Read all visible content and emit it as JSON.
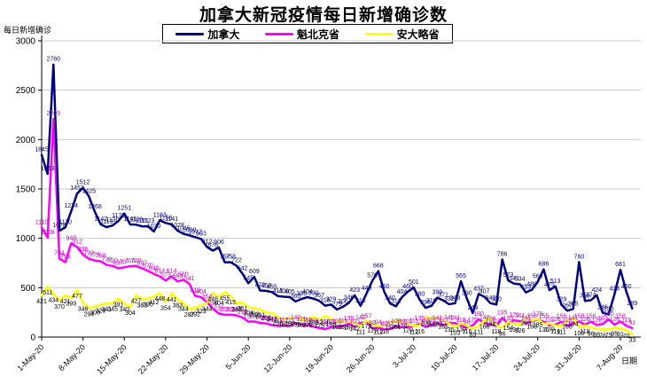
{
  "title": "加拿大新冠疫情每日新增确诊数",
  "legend": {
    "items": [
      {
        "label": "加拿大",
        "color": "#000080"
      },
      {
        "label": "魁北克省",
        "color": "#FF00FF"
      },
      {
        "label": "安大略省",
        "color": "#FFFF00"
      }
    ]
  },
  "y_axis": {
    "title": "每日新增确诊",
    "ticks": [
      "0",
      "500",
      "1000",
      "1500",
      "2000",
      "2500",
      "3000"
    ]
  },
  "x_axis": {
    "title": "日期",
    "ticks": [
      "1-May-20",
      "8-May-20",
      "15-May-20",
      "22-May-20",
      "29-May-20",
      "5-Jun-20",
      "12-Jun-20",
      "19-Jun-20",
      "26-Jun-20",
      "3-Jul-20",
      "10-Jul-20",
      "17-Jul-20",
      "24-Jul-20",
      "31-Jul-20",
      "7-Aug-20"
    ]
  },
  "chart_data": {
    "type": "line",
    "title": "加拿大新冠疫情每日新增确诊数",
    "xlabel": "日期",
    "ylabel": "每日新增确诊",
    "ylim": [
      0,
      3000
    ],
    "y_tick_step": 500,
    "grid": "horizontal-gray",
    "legend_position": "top-center",
    "x_tick_labels": [
      "1-May-20",
      "8-May-20",
      "15-May-20",
      "22-May-20",
      "29-May-20",
      "5-Jun-20",
      "12-Jun-20",
      "19-Jun-20",
      "26-Jun-20",
      "3-Jul-20",
      "10-Jul-20",
      "17-Jul-20",
      "24-Jul-20",
      "31-Jul-20",
      "7-Aug-20"
    ],
    "x_tick_interval_days": 7,
    "point_labels_visible": true,
    "notable_peaks": [
      {
        "series": "加拿大",
        "value": 2760
      },
      {
        "series": "魁北克省",
        "value": 2209
      },
      {
        "series": "加拿大",
        "value": 786
      },
      {
        "series": "加拿大",
        "value": 760
      },
      {
        "series": "加拿大",
        "value": 681
      }
    ],
    "series": [
      {
        "name": "加拿大",
        "color": "#000080",
        "label_color": "#000080",
        "label_dy": -4,
        "values": [
          1845,
          1653,
          2760,
          1078,
          1110,
          1274,
          1453,
          1512,
          1425,
          1268,
          1142,
          1113,
          1130,
          1176,
          1251,
          1141,
          1138,
          1121,
          1123,
          1070,
          1183,
          1156,
          1141,
          1078,
          1046,
          1030,
          1012,
          993,
          912,
          876,
          906,
          757,
          758,
          722,
          642,
          545,
          609,
          472,
          468,
          455,
          415,
          409,
          405,
          360,
          386,
          404,
          390,
          367,
          318,
          329,
          279,
          306,
          346,
          423,
          316,
          440,
          570,
          668,
          460,
          340,
          312,
          404,
          460,
          501,
          380,
          296,
          316,
          399,
          371,
          332,
          343,
          565,
          390,
          243,
          437,
          407,
          343,
          330,
          786,
          573,
          541,
          534,
          453,
          480,
          560,
          686,
          475,
          513,
          329,
          267,
          285,
          760,
          366,
          374,
          424,
          246,
          230,
          434,
          681,
          460,
          289
        ]
      },
      {
        "name": "魁北克省",
        "color": "#FF00FF",
        "label_color": "#CC00CC",
        "label_dy": -4,
        "values": [
          1110,
          1008,
          2209,
          794,
          758,
          949,
          912,
          836,
          793,
          775,
          768,
          730,
          720,
          697,
          707,
          718,
          720,
          697,
          670,
          640,
          614,
          573,
          614,
          563,
          580,
          541,
          419,
          404,
          354,
          289,
          239,
          225,
          226,
          220,
          198,
          156,
          158,
          144,
          138,
          121,
          112,
          117,
          111,
          142,
          125,
          119,
          108,
          92,
          81,
          100,
          102,
          111,
          135,
          103,
          142,
          157,
          88,
          94,
          80,
          82,
          108,
          100,
          102,
          111,
          135,
          103,
          122,
          141,
          123,
          145,
          141,
          118,
          96,
          120,
          180,
          142,
          128,
          110,
          195,
          133,
          171,
          161,
          141,
          158,
          179,
          155,
          122,
          126,
          156,
          115,
          141,
          158,
          126,
          156,
          122,
          133,
          180,
          126,
          158,
          115,
          91
        ]
      },
      {
        "name": "安大略省",
        "color": "#FFFF00",
        "label_color": "#000000",
        "label_dy": 9,
        "values": [
          421,
          511,
          434,
          370,
          421,
          399,
          477,
          346,
          294,
          308,
          329,
          341,
          345,
          391,
          340,
          304,
          427,
          383,
          390,
          412,
          448,
          354,
          441,
          383,
          344,
          287,
          292,
          323,
          344,
          446,
          404,
          455,
          415,
          343,
          351,
          304,
          292,
          281,
          251,
          243,
          203,
          182,
          197,
          190,
          184,
          178,
          206,
          175,
          216,
          189,
          161,
          163,
          157,
          142,
          111,
          170,
          129,
          112,
          116,
          157,
          161,
          170,
          129,
          112,
          116,
          203,
          185,
          193,
          165,
          135,
          103,
          139,
          116,
          85,
          111,
          168,
          194,
          118,
          96,
          154,
          134,
          126,
          203,
          165,
          185,
          135,
          139,
          116,
          111,
          168,
          194,
          100,
          118,
          96,
          86,
          76,
          79,
          95,
          91,
          70,
          33
        ]
      }
    ]
  }
}
